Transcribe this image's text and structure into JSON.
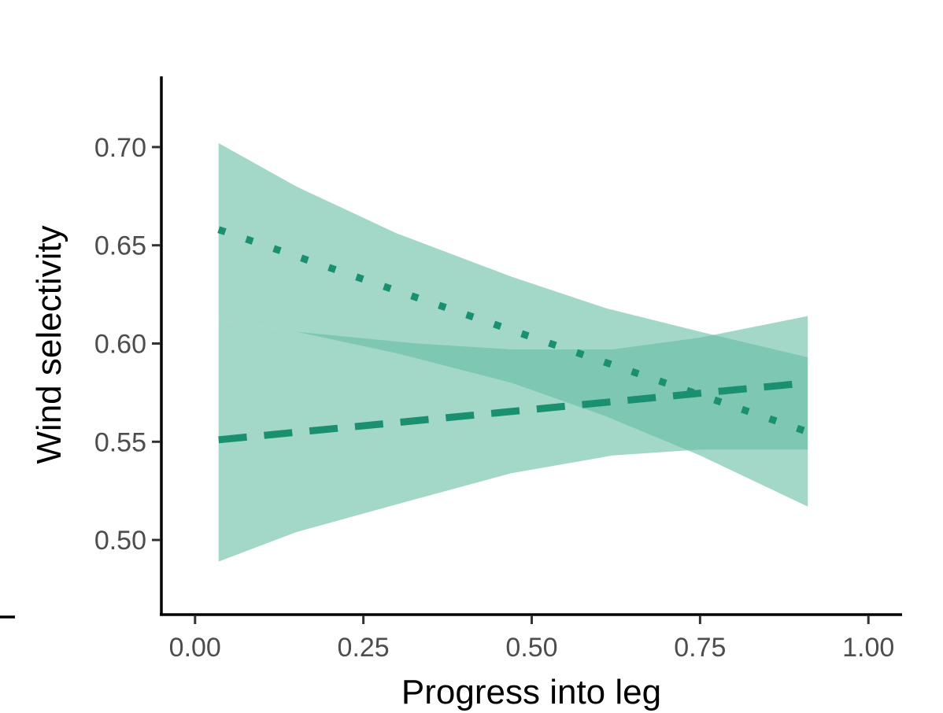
{
  "chart_data": {
    "type": "line",
    "xlabel": "Progress into leg",
    "ylabel": "Wind selectivity",
    "xlim": [
      -0.05,
      1.05
    ],
    "ylim": [
      0.462,
      0.736
    ],
    "x_ticks": [
      0.0,
      0.25,
      0.5,
      0.75,
      1.0
    ],
    "x_tick_labels": [
      "0.00",
      "0.25",
      "0.50",
      "0.75",
      "1.00"
    ],
    "y_ticks": [
      0.5,
      0.55,
      0.6,
      0.65,
      0.7
    ],
    "y_tick_labels": [
      "0.50",
      "0.55",
      "0.60",
      "0.65",
      "0.70"
    ],
    "grid": false,
    "legend": "none",
    "series": [
      {
        "line_style": "dotted",
        "color": "#1b9070",
        "x": [
          0.035,
          0.91
        ],
        "y": [
          0.658,
          0.555
        ],
        "ribbon_x": [
          0.035,
          0.15,
          0.3,
          0.47,
          0.61,
          0.75,
          0.91
        ],
        "ribbon_lower": [
          0.612,
          0.606,
          0.595,
          0.58,
          0.563,
          0.543,
          0.517
        ],
        "ribbon_upper": [
          0.702,
          0.68,
          0.656,
          0.634,
          0.618,
          0.606,
          0.593
        ]
      },
      {
        "line_style": "dashed",
        "color": "#1b9070",
        "x": [
          0.035,
          0.91
        ],
        "y": [
          0.551,
          0.58
        ],
        "ribbon_x": [
          0.035,
          0.15,
          0.33,
          0.47,
          0.62,
          0.75,
          0.91
        ],
        "ribbon_lower": [
          0.489,
          0.504,
          0.521,
          0.534,
          0.543,
          0.546,
          0.546
        ],
        "ribbon_upper": [
          0.612,
          0.606,
          0.6,
          0.597,
          0.597,
          0.603,
          0.614
        ]
      }
    ],
    "ribbon_color": "#66bca4",
    "ribbon_opacity": 0.6
  }
}
